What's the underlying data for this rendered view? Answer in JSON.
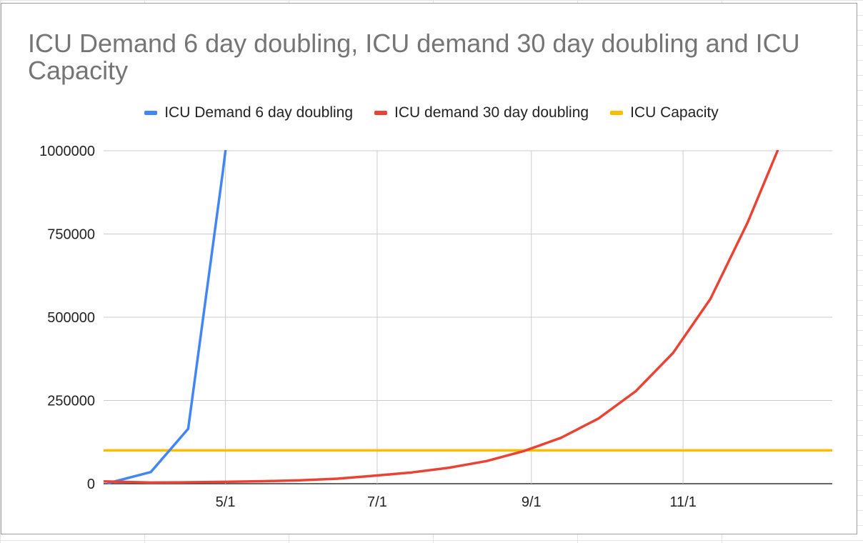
{
  "chart_data": {
    "type": "line",
    "title": "ICU Demand 6 day doubling, ICU demand 30 day doubling and ICU Capacity",
    "xlabel": "",
    "ylabel": "",
    "x_ticks": [
      "5/1",
      "7/1",
      "9/1",
      "11/1"
    ],
    "y_ticks": [
      "0",
      "250000",
      "500000",
      "750000",
      "1000000"
    ],
    "ylim": [
      0,
      1000000
    ],
    "xlim": [
      "2020-03-13",
      "2020-12-31"
    ],
    "grid": true,
    "legend_position": "top",
    "series": [
      {
        "name": "ICU Demand 6 day doubling",
        "color": "#4285f4",
        "points": [
          {
            "x": "2020-03-15",
            "y": 2000
          },
          {
            "x": "2020-04-01",
            "y": 35000
          },
          {
            "x": "2020-04-16",
            "y": 165000
          },
          {
            "x": "2020-04-30",
            "y": 940000
          },
          {
            "x": "2020-05-01",
            "y": 1000000
          }
        ]
      },
      {
        "name": "ICU demand 30 day doubling",
        "color": "#ea4335",
        "points": [
          {
            "x": "2020-03-13",
            "y": 7000
          },
          {
            "x": "2020-04-01",
            "y": 3500
          },
          {
            "x": "2020-04-16",
            "y": 4300
          },
          {
            "x": "2020-05-01",
            "y": 5500
          },
          {
            "x": "2020-05-16",
            "y": 7600
          },
          {
            "x": "2020-05-31",
            "y": 10000
          },
          {
            "x": "2020-06-15",
            "y": 15000
          },
          {
            "x": "2020-06-30",
            "y": 24000
          },
          {
            "x": "2020-07-15",
            "y": 34000
          },
          {
            "x": "2020-07-30",
            "y": 48000
          },
          {
            "x": "2020-08-14",
            "y": 68000
          },
          {
            "x": "2020-08-29",
            "y": 98000
          },
          {
            "x": "2020-09-13",
            "y": 138000
          },
          {
            "x": "2020-09-28",
            "y": 196000
          },
          {
            "x": "2020-10-13",
            "y": 278000
          },
          {
            "x": "2020-10-28",
            "y": 393000
          },
          {
            "x": "2020-11-12",
            "y": 555000
          },
          {
            "x": "2020-11-27",
            "y": 785000
          },
          {
            "x": "2020-12-09",
            "y": 1000000
          }
        ]
      },
      {
        "name": "ICU Capacity",
        "color": "#fbbc04",
        "points": [
          {
            "x": "2020-03-13",
            "y": 100000
          },
          {
            "x": "2020-12-31",
            "y": 100000
          }
        ]
      }
    ]
  }
}
